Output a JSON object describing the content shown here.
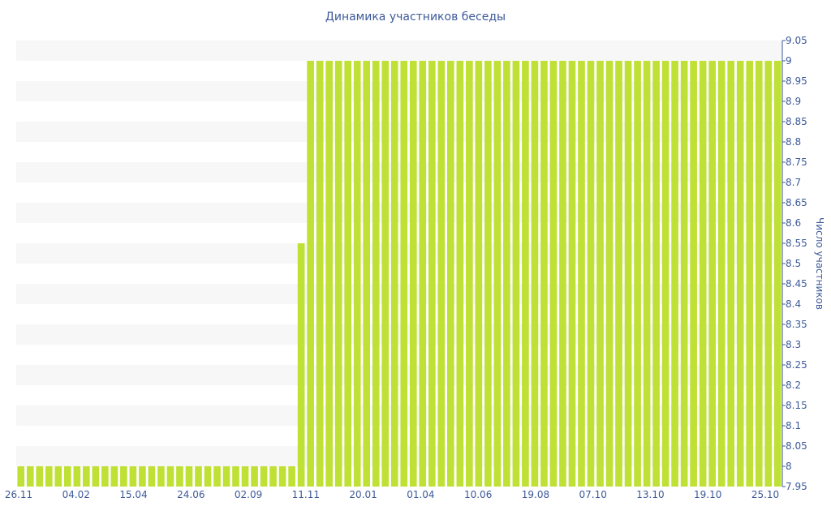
{
  "chart_data": {
    "type": "bar",
    "title": "Динамика участников беседы",
    "xlabel": "",
    "ylabel": "Число участников",
    "ylim": [
      7.95,
      9.05
    ],
    "yticks": [
      "9.05",
      "9",
      "8.95",
      "8.9",
      "8.85",
      "8.8",
      "8.75",
      "8.7",
      "8.65",
      "8.6",
      "8.55",
      "8.5",
      "8.45",
      "8.4",
      "8.35",
      "8.3",
      "8.25",
      "8.2",
      "8.15",
      "8.1",
      "8.05",
      "8",
      "7.95"
    ],
    "xtick_labels": [
      "26.11",
      "04.02",
      "15.04",
      "24.06",
      "02.09",
      "11.11",
      "20.01",
      "01.04",
      "10.06",
      "19.08",
      "07.10",
      "13.10",
      "19.10",
      "25.10"
    ],
    "y_axis_position": "right",
    "grid": "horizontal-bands",
    "colors": {
      "bar": "#bfe034",
      "band": "#f7f7f7",
      "text": "#3d5a99"
    },
    "values": [
      8,
      8,
      8,
      8,
      8,
      8,
      8,
      8,
      8,
      8,
      8,
      8,
      8,
      8,
      8,
      8,
      8,
      8,
      8,
      8,
      8,
      8,
      8,
      8,
      8,
      8,
      8,
      8,
      8,
      8,
      8.55,
      9,
      9,
      9,
      9,
      9,
      9,
      9,
      9,
      9,
      9,
      9,
      9,
      9,
      9,
      9,
      9,
      9,
      9,
      9,
      9,
      9,
      9,
      9,
      9,
      9,
      9,
      9,
      9,
      9,
      9,
      9,
      9,
      9,
      9,
      9,
      9,
      9,
      9,
      9,
      9,
      9,
      9,
      9,
      9,
      9,
      9,
      9,
      9,
      9,
      9,
      9
    ]
  }
}
